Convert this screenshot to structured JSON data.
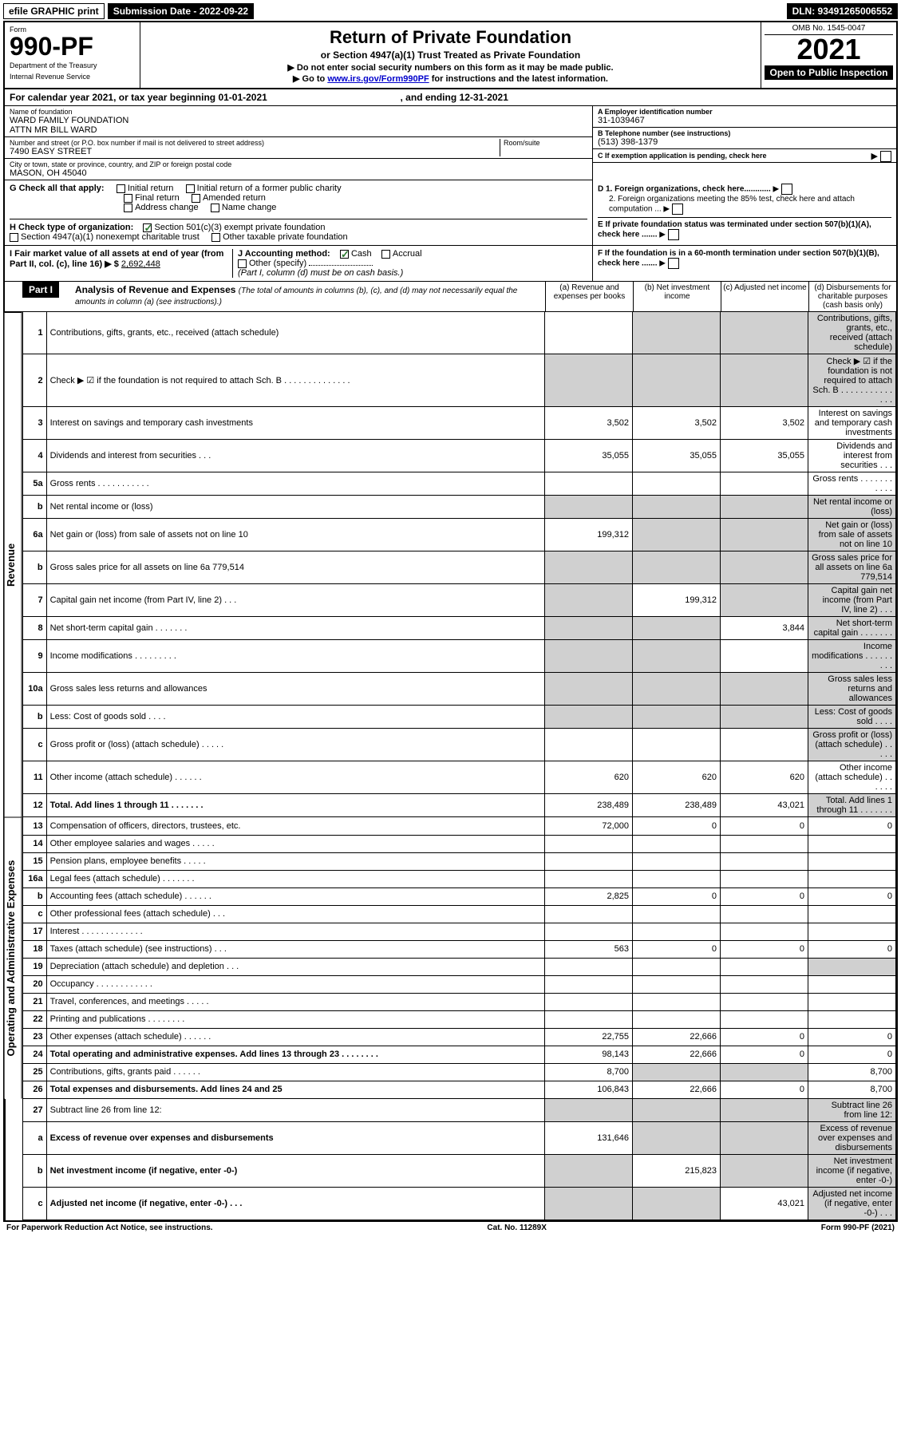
{
  "topbar": {
    "efile": "efile GRAPHIC print",
    "sub_label": "Submission Date - 2022-09-22",
    "dln": "DLN: 93491265006552"
  },
  "header": {
    "form_word": "Form",
    "form_num": "990-PF",
    "dept": "Department of the Treasury",
    "irs": "Internal Revenue Service",
    "title": "Return of Private Foundation",
    "subtitle": "or Section 4947(a)(1) Trust Treated as Private Foundation",
    "note1": "▶ Do not enter social security numbers on this form as it may be made public.",
    "note2": "▶ Go to www.irs.gov/Form990PF for instructions and the latest information.",
    "omb": "OMB No. 1545-0047",
    "year": "2021",
    "open": "Open to Public Inspection"
  },
  "cal": {
    "text": "For calendar year 2021, or tax year beginning 01-01-2021",
    "end": ", and ending 12-31-2021"
  },
  "id": {
    "name_lbl": "Name of foundation",
    "name1": "WARD FAMILY FOUNDATION",
    "name2": "ATTN MR BILL WARD",
    "addr_lbl": "Number and street (or P.O. box number if mail is not delivered to street address)",
    "addr": "7490 EASY STREET",
    "room_lbl": "Room/suite",
    "city_lbl": "City or town, state or province, country, and ZIP or foreign postal code",
    "city": "MASON, OH  45040",
    "ein_lbl": "A Employer identification number",
    "ein": "31-1039467",
    "tel_lbl": "B Telephone number (see instructions)",
    "tel": "(513) 398-1379",
    "c_lbl": "C If exemption application is pending, check here"
  },
  "g": {
    "label": "G Check all that apply:",
    "initial": "Initial return",
    "initial_pc": "Initial return of a former public charity",
    "final": "Final return",
    "amended": "Amended return",
    "addr_ch": "Address change",
    "name_ch": "Name change"
  },
  "h": {
    "label": "H Check type of organization:",
    "s501": "Section 501(c)(3) exempt private foundation",
    "s4947": "Section 4947(a)(1) nonexempt charitable trust",
    "other_tax": "Other taxable private foundation"
  },
  "d": {
    "d1": "D 1. Foreign organizations, check here............",
    "d2": "2. Foreign organizations meeting the 85% test, check here and attach computation ...",
    "e": "E  If private foundation status was terminated under section 507(b)(1)(A), check here .......",
    "f": "F  If the foundation is in a 60-month termination under section 507(b)(1)(B), check here ......."
  },
  "ij": {
    "i": "I Fair market value of all assets at end of year (from Part II, col. (c), line 16) ▶ $",
    "i_val": "2,692,448",
    "j": "J Accounting method:",
    "cash": "Cash",
    "accrual": "Accrual",
    "other": "Other (specify)",
    "note": "(Part I, column (d) must be on cash basis.)"
  },
  "part1": {
    "bar": "Part I",
    "title": "Analysis of Revenue and Expenses",
    "sub": "(The total of amounts in columns (b), (c), and (d) may not necessarily equal the amounts in column (a) (see instructions).)",
    "col_a": "(a) Revenue and expenses per books",
    "col_b": "(b) Net investment income",
    "col_c": "(c) Adjusted net income",
    "col_d": "(d) Disbursements for charitable purposes (cash basis only)"
  },
  "sidebars": {
    "rev": "Revenue",
    "exp": "Operating and Administrative Expenses"
  },
  "rows": [
    {
      "n": "1",
      "d": "Contributions, gifts, grants, etc., received (attach schedule)",
      "a": "",
      "b": "",
      "c": "",
      "s": [
        "b",
        "c",
        "d"
      ]
    },
    {
      "n": "2",
      "d": "Check ▶ ☑ if the foundation is not required to attach Sch. B   .   .   .   .   .   .   .   .   .   .   .   .   .   .",
      "a": "",
      "s": [
        "a",
        "b",
        "c",
        "d"
      ],
      "bold": false
    },
    {
      "n": "3",
      "d": "Interest on savings and temporary cash investments",
      "a": "3,502",
      "b": "3,502",
      "c": "3,502",
      "s": []
    },
    {
      "n": "4",
      "d": "Dividends and interest from securities   .   .   .",
      "a": "35,055",
      "b": "35,055",
      "c": "35,055",
      "s": []
    },
    {
      "n": "5a",
      "d": "Gross rents   .   .   .   .   .   .   .   .   .   .   .",
      "s": []
    },
    {
      "n": "b",
      "d": "Net rental income or (loss)",
      "s": [
        "a",
        "b",
        "c",
        "d"
      ],
      "inline": true
    },
    {
      "n": "6a",
      "d": "Net gain or (loss) from sale of assets not on line 10",
      "a": "199,312",
      "s": [
        "b",
        "c",
        "d"
      ]
    },
    {
      "n": "b",
      "d": "Gross sales price for all assets on line 6a           779,514",
      "s": [
        "a",
        "b",
        "c",
        "d"
      ],
      "inline": true
    },
    {
      "n": "7",
      "d": "Capital gain net income (from Part IV, line 2)   .   .   .",
      "b": "199,312",
      "s": [
        "a",
        "c",
        "d"
      ]
    },
    {
      "n": "8",
      "d": "Net short-term capital gain   .   .   .   .   .   .   .",
      "c": "3,844",
      "s": [
        "a",
        "b",
        "d"
      ]
    },
    {
      "n": "9",
      "d": "Income modifications   .   .   .   .   .   .   .   .   .",
      "s": [
        "a",
        "b",
        "d"
      ]
    },
    {
      "n": "10a",
      "d": "Gross sales less returns and allowances",
      "s": [
        "a",
        "b",
        "c",
        "d"
      ],
      "inline": true
    },
    {
      "n": "b",
      "d": "Less: Cost of goods sold   .   .   .   .",
      "s": [
        "a",
        "b",
        "c",
        "d"
      ],
      "inline": true
    },
    {
      "n": "c",
      "d": "Gross profit or (loss) (attach schedule)   .   .   .   .   .",
      "s": [
        "d"
      ]
    },
    {
      "n": "11",
      "d": "Other income (attach schedule)   .   .   .   .   .   .",
      "a": "620",
      "b": "620",
      "c": "620",
      "s": []
    },
    {
      "n": "12",
      "d": "Total. Add lines 1 through 11   .   .   .   .   .   .   .",
      "a": "238,489",
      "b": "238,489",
      "c": "43,021",
      "s": [
        "d"
      ],
      "bold": true
    }
  ],
  "exp_rows": [
    {
      "n": "13",
      "d": "Compensation of officers, directors, trustees, etc.",
      "a": "72,000",
      "b": "0",
      "c": "0",
      "dd": "0"
    },
    {
      "n": "14",
      "d": "Other employee salaries and wages   .   .   .   .   ."
    },
    {
      "n": "15",
      "d": "Pension plans, employee benefits   .   .   .   .   ."
    },
    {
      "n": "16a",
      "d": "Legal fees (attach schedule)   .   .   .   .   .   .   ."
    },
    {
      "n": "b",
      "d": "Accounting fees (attach schedule)   .   .   .   .   .   .",
      "a": "2,825",
      "b": "0",
      "c": "0",
      "dd": "0"
    },
    {
      "n": "c",
      "d": "Other professional fees (attach schedule)   .   .   ."
    },
    {
      "n": "17",
      "d": "Interest   .   .   .   .   .   .   .   .   .   .   .   .   ."
    },
    {
      "n": "18",
      "d": "Taxes (attach schedule) (see instructions)   .   .   .",
      "a": "563",
      "b": "0",
      "c": "0",
      "dd": "0"
    },
    {
      "n": "19",
      "d": "Depreciation (attach schedule) and depletion   .   .   .",
      "s": [
        "d"
      ]
    },
    {
      "n": "20",
      "d": "Occupancy   .   .   .   .   .   .   .   .   .   .   .   ."
    },
    {
      "n": "21",
      "d": "Travel, conferences, and meetings   .   .   .   .   ."
    },
    {
      "n": "22",
      "d": "Printing and publications   .   .   .   .   .   .   .   ."
    },
    {
      "n": "23",
      "d": "Other expenses (attach schedule)   .   .   .   .   .   .",
      "a": "22,755",
      "b": "22,666",
      "c": "0",
      "dd": "0"
    },
    {
      "n": "24",
      "d": "Total operating and administrative expenses. Add lines 13 through 23   .   .   .   .   .   .   .   .",
      "a": "98,143",
      "b": "22,666",
      "c": "0",
      "dd": "0",
      "bold": true
    },
    {
      "n": "25",
      "d": "Contributions, gifts, grants paid   .   .   .   .   .   .",
      "a": "8,700",
      "dd": "8,700",
      "s": [
        "b",
        "c"
      ]
    },
    {
      "n": "26",
      "d": "Total expenses and disbursements. Add lines 24 and 25",
      "a": "106,843",
      "b": "22,666",
      "c": "0",
      "dd": "8,700",
      "bold": true
    }
  ],
  "bottom_rows": [
    {
      "n": "27",
      "d": "Subtract line 26 from line 12:",
      "s": [
        "a",
        "b",
        "c",
        "d"
      ]
    },
    {
      "n": "a",
      "d": "Excess of revenue over expenses and disbursements",
      "a": "131,646",
      "s": [
        "b",
        "c",
        "d"
      ],
      "bold": true
    },
    {
      "n": "b",
      "d": "Net investment income (if negative, enter -0-)",
      "b": "215,823",
      "s": [
        "a",
        "c",
        "d"
      ],
      "bold": true
    },
    {
      "n": "c",
      "d": "Adjusted net income (if negative, enter -0-)   .   .   .",
      "c": "43,021",
      "s": [
        "a",
        "b",
        "d"
      ],
      "bold": true
    }
  ],
  "footer": {
    "left": "For Paperwork Reduction Act Notice, see instructions.",
    "mid": "Cat. No. 11289X",
    "right": "Form 990-PF (2021)"
  }
}
